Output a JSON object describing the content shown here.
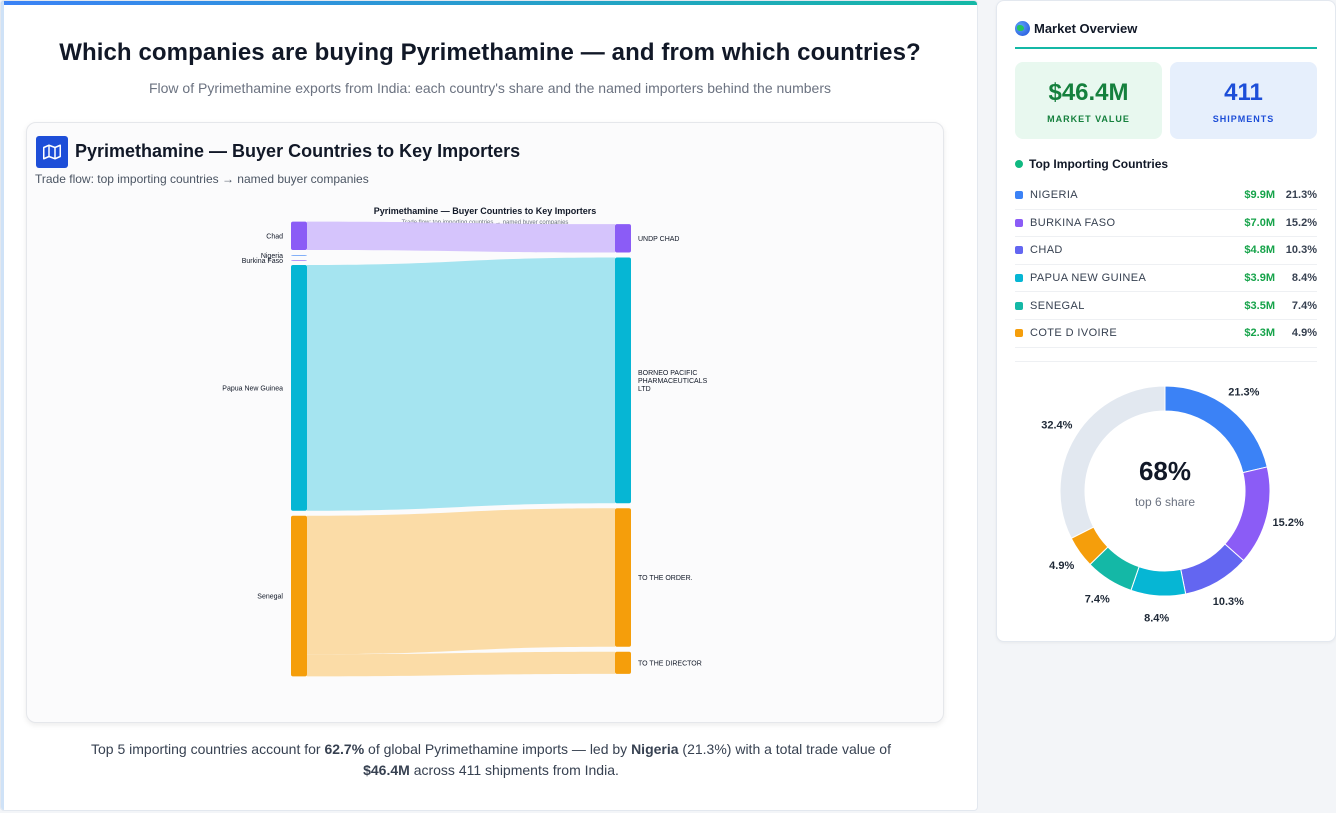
{
  "header": {
    "title": "Which companies are buying Pyrimethamine — and from which countries?",
    "subtitle": "Flow of Pyrimethamine exports from India: each country's share and the named importers behind the numbers"
  },
  "chart_card": {
    "icon": "map-icon",
    "title": "Pyrimethamine — Buyer Countries to Key Importers",
    "subtitle": "Trade flow: top importing countries → named buyer companies"
  },
  "chart_data": [
    {
      "type": "sankey",
      "title": "Pyrimethamine — Buyer Countries to Key Importers",
      "subtitle": "Trade flow: top importing countries → named buyer companies",
      "nodes_left": [
        {
          "name": "Chad",
          "color": "#8b5cf6"
        },
        {
          "name": "Nigeria",
          "color": "#3b82f6"
        },
        {
          "name": "Burkina Faso",
          "color": "#8b5cf6"
        },
        {
          "name": "Papua New Guinea",
          "color": "#06b6d4"
        },
        {
          "name": "Senegal",
          "color": "#f59e0b"
        }
      ],
      "nodes_right": [
        {
          "name": "UNDP CHAD",
          "color": "#8b5cf6"
        },
        {
          "name": "BORNEO PACIFIC PHARMACEUTICALS LTD",
          "color": "#06b6d4"
        },
        {
          "name": "TO THE ORDER.",
          "color": "#f59e0b"
        },
        {
          "name": "TO THE DIRECTOR",
          "color": "#f59e0b"
        }
      ],
      "links": [
        {
          "source": "Chad",
          "target": "UNDP CHAD",
          "value": 0.45
        },
        {
          "source": "Papua New Guinea",
          "target": "BORNEO PACIFIC PHARMACEUTICALS LTD",
          "value": 3.9
        },
        {
          "source": "Senegal",
          "target": "TO THE ORDER.",
          "value": 2.2
        },
        {
          "source": "Senegal",
          "target": "TO THE DIRECTOR",
          "value": 0.35
        }
      ]
    },
    {
      "type": "pie",
      "center_value": "68%",
      "center_label": "top 6 share",
      "slices": [
        {
          "label": "21.3%",
          "value": 21.3,
          "color": "#3b82f6"
        },
        {
          "label": "15.2%",
          "value": 15.2,
          "color": "#8b5cf6"
        },
        {
          "label": "10.3%",
          "value": 10.3,
          "color": "#6366f1"
        },
        {
          "label": "8.4%",
          "value": 8.4,
          "color": "#06b6d4"
        },
        {
          "label": "7.4%",
          "value": 7.4,
          "color": "#14b8a6"
        },
        {
          "label": "4.9%",
          "value": 4.9,
          "color": "#f59e0b"
        },
        {
          "label": "32.4%",
          "value": 32.4,
          "color": "#e2e8f0"
        }
      ]
    }
  ],
  "footer": {
    "p1": "Top 5 importing countries account for ",
    "b1": "62.7%",
    "p2": " of global Pyrimethamine imports — led by ",
    "b2": "Nigeria",
    "p3": " (21.3%) with a total trade value of ",
    "b3": "$46.4M",
    "p4": " across 411 shipments from India."
  },
  "sidebar": {
    "title": "Market Overview",
    "icon": "globe-icon",
    "kpis": {
      "market_value": "$46.4M",
      "market_value_label": "MARKET VALUE",
      "shipments": "411",
      "shipments_label": "SHIPMENTS"
    },
    "countries_heading": "Top Importing Countries",
    "countries": [
      {
        "name": "NIGERIA",
        "value": "$9.9M",
        "pct": "21.3%",
        "color": "#3b82f6"
      },
      {
        "name": "BURKINA FASO",
        "value": "$7.0M",
        "pct": "15.2%",
        "color": "#8b5cf6"
      },
      {
        "name": "CHAD",
        "value": "$4.8M",
        "pct": "10.3%",
        "color": "#6366f1"
      },
      {
        "name": "PAPUA NEW GUINEA",
        "value": "$3.9M",
        "pct": "8.4%",
        "color": "#06b6d4"
      },
      {
        "name": "SENEGAL",
        "value": "$3.5M",
        "pct": "7.4%",
        "color": "#14b8a6"
      },
      {
        "name": "COTE D IVOIRE",
        "value": "$2.3M",
        "pct": "4.9%",
        "color": "#f59e0b"
      }
    ]
  }
}
